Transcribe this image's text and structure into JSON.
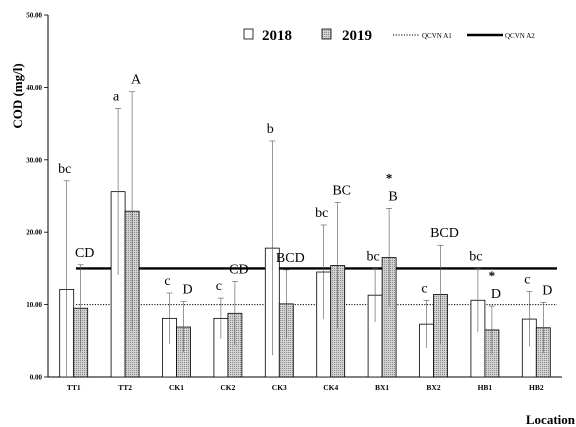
{
  "chart_data": {
    "type": "bar",
    "ylabel": "COD (mg/l)",
    "xlabel": "Location",
    "ylim": [
      0,
      50
    ],
    "y_ticks": [
      "0.00",
      "10.00",
      "20.00",
      "30.00",
      "40.00",
      "50.00"
    ],
    "categories": [
      "TT1",
      "TT2",
      "CK1",
      "CK2",
      "CK3",
      "CK4",
      "BX1",
      "BX2",
      "HB1",
      "HB2"
    ],
    "series": [
      {
        "name": "2018",
        "fill": "#ffffff",
        "values": [
          12.1,
          25.6,
          8.1,
          8.1,
          17.8,
          14.5,
          11.3,
          7.3,
          10.6,
          8.0
        ],
        "error": [
          15.0,
          11.5,
          3.5,
          2.8,
          14.8,
          6.5,
          3.7,
          3.3,
          4.4,
          3.8
        ],
        "labels": [
          "bc",
          "a",
          "c",
          "c",
          "b",
          "bc",
          "bc",
          "c",
          "bc",
          "c"
        ],
        "stars": [
          false,
          false,
          false,
          false,
          false,
          false,
          false,
          false,
          false,
          false
        ]
      },
      {
        "name": "2019",
        "fill": "#d9d9d9",
        "values": [
          9.5,
          22.9,
          6.9,
          8.8,
          10.1,
          15.4,
          16.5,
          11.4,
          6.5,
          6.8
        ],
        "error": [
          6.0,
          16.5,
          3.5,
          4.4,
          4.7,
          8.7,
          6.8,
          6.8,
          3.3,
          3.5
        ],
        "labels": [
          "CD",
          "A",
          "D",
          "CD",
          "BCD",
          "BC",
          "B",
          "BCD",
          "D",
          "D"
        ],
        "stars": [
          false,
          false,
          false,
          false,
          false,
          false,
          true,
          false,
          true,
          false
        ]
      }
    ],
    "reference_lines": [
      {
        "name": "QCVN A1",
        "value": 10,
        "style": "dotted"
      },
      {
        "name": "QCVN A2",
        "value": 15,
        "style": "solid"
      }
    ],
    "star_symbol": "*",
    "legend_position": "top-right",
    "grid": false
  }
}
